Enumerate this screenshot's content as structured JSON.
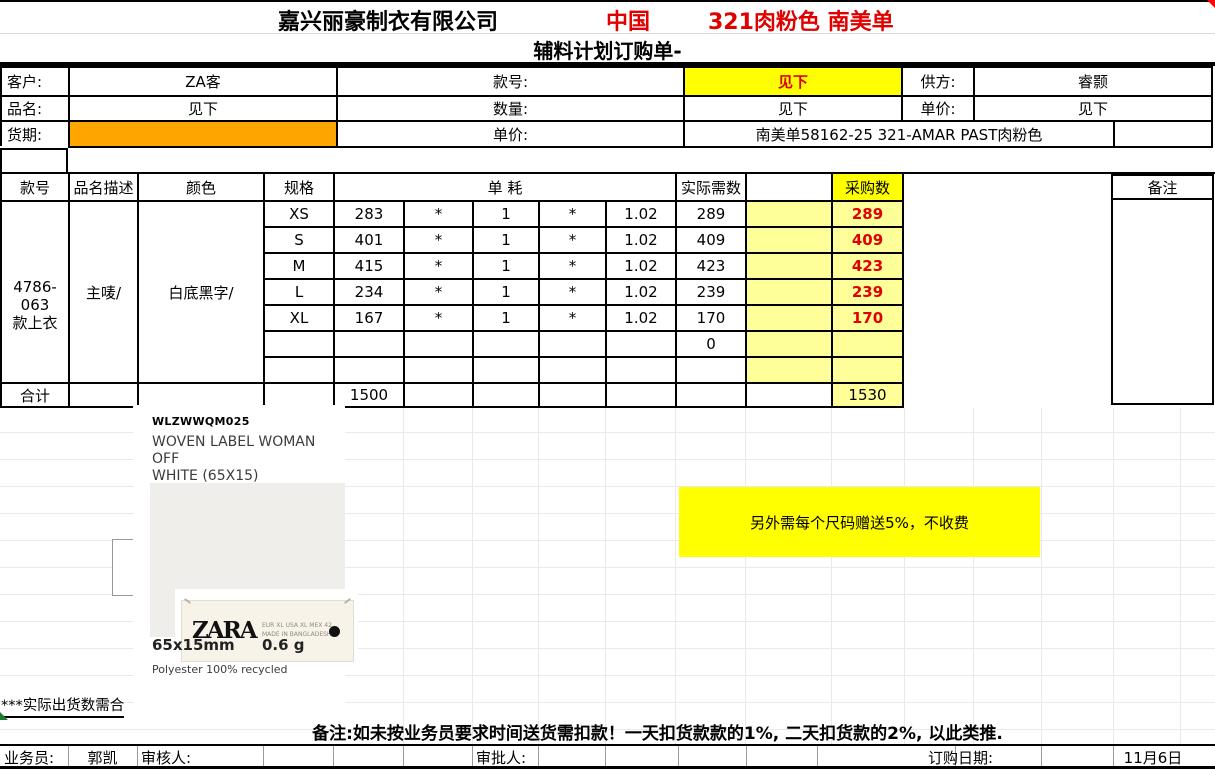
{
  "colors": {
    "highlight_yellow": "#FFFF00",
    "pale_yellow": "#FFFF99",
    "orange": "#FFA500",
    "red_text": "#E00000"
  },
  "title": {
    "company": "嘉兴丽豪制衣有限公司",
    "country": "中国",
    "batch": "321肉粉色 南美单",
    "form": "辅料计划订购单-"
  },
  "info": {
    "customer_label": "客户:",
    "customer": "ZA客",
    "style_label": "款号:",
    "style": "见下",
    "supplier_label": "供方:",
    "supplier": "睿颢",
    "name_label": "品名:",
    "name": "见下",
    "qty_label": "数量:",
    "qty": "见下",
    "price_label": "单价:",
    "price": "见下",
    "delivery_label": "货期:",
    "unit_price_label": "单价:",
    "order_info": "南美单58162-25 321-AMAR PAST肉粉色"
  },
  "table": {
    "headers": {
      "style": "款号",
      "desc": "品名描述",
      "color": "颜色",
      "spec": "规格",
      "consumption": "单 耗",
      "need": "实际需数",
      "buy": "采购数",
      "remark": "备注"
    },
    "item": {
      "style_no": "4786-063\n款上衣",
      "desc": "主唛/",
      "color": "白底黑字/"
    },
    "rows": [
      {
        "size": "XS",
        "base": "283",
        "m1": "*",
        "u": "1",
        "m2": "*",
        "f": "1.02",
        "need": "289",
        "buy": "289"
      },
      {
        "size": "S",
        "base": "401",
        "m1": "*",
        "u": "1",
        "m2": "*",
        "f": "1.02",
        "need": "409",
        "buy": "409"
      },
      {
        "size": "M",
        "base": "415",
        "m1": "*",
        "u": "1",
        "m2": "*",
        "f": "1.02",
        "need": "423",
        "buy": "423"
      },
      {
        "size": "L",
        "base": "234",
        "m1": "*",
        "u": "1",
        "m2": "*",
        "f": "1.02",
        "need": "239",
        "buy": "239"
      },
      {
        "size": "XL",
        "base": "167",
        "m1": "*",
        "u": "1",
        "m2": "*",
        "f": "1.02",
        "need": "170",
        "buy": "170"
      }
    ],
    "zero": "0",
    "total": {
      "label": "合计",
      "qty": "1500",
      "buy": "1530"
    }
  },
  "label_card": {
    "code": "WLZWWQM025",
    "name": "WOVEN LABEL WOMAN OFF\nWHITE (65X15)",
    "brand": "ZARA",
    "tag_info": "EUR XL  USA XL  MEX 42\nMADE IN BANGLADESH",
    "dimensions": "65x15mm",
    "weight": "0.6 g",
    "material": "Polyester 100% recycled"
  },
  "notes": {
    "bonus": "另外需每个尺码赠送5%，不收费",
    "ship_note": "***实际出货数需合",
    "penalty": "备注:如未按业务员要求时间送货需扣款！一天扣货款款的1%, 二天扣货款的2%, 以此类推."
  },
  "footer": {
    "salesman_label": "业务员:",
    "salesman": "郭凯",
    "reviewer_label": "审核人:",
    "approver_label": "审批人:",
    "date_label": "订购日期:",
    "date": "11月6日"
  }
}
